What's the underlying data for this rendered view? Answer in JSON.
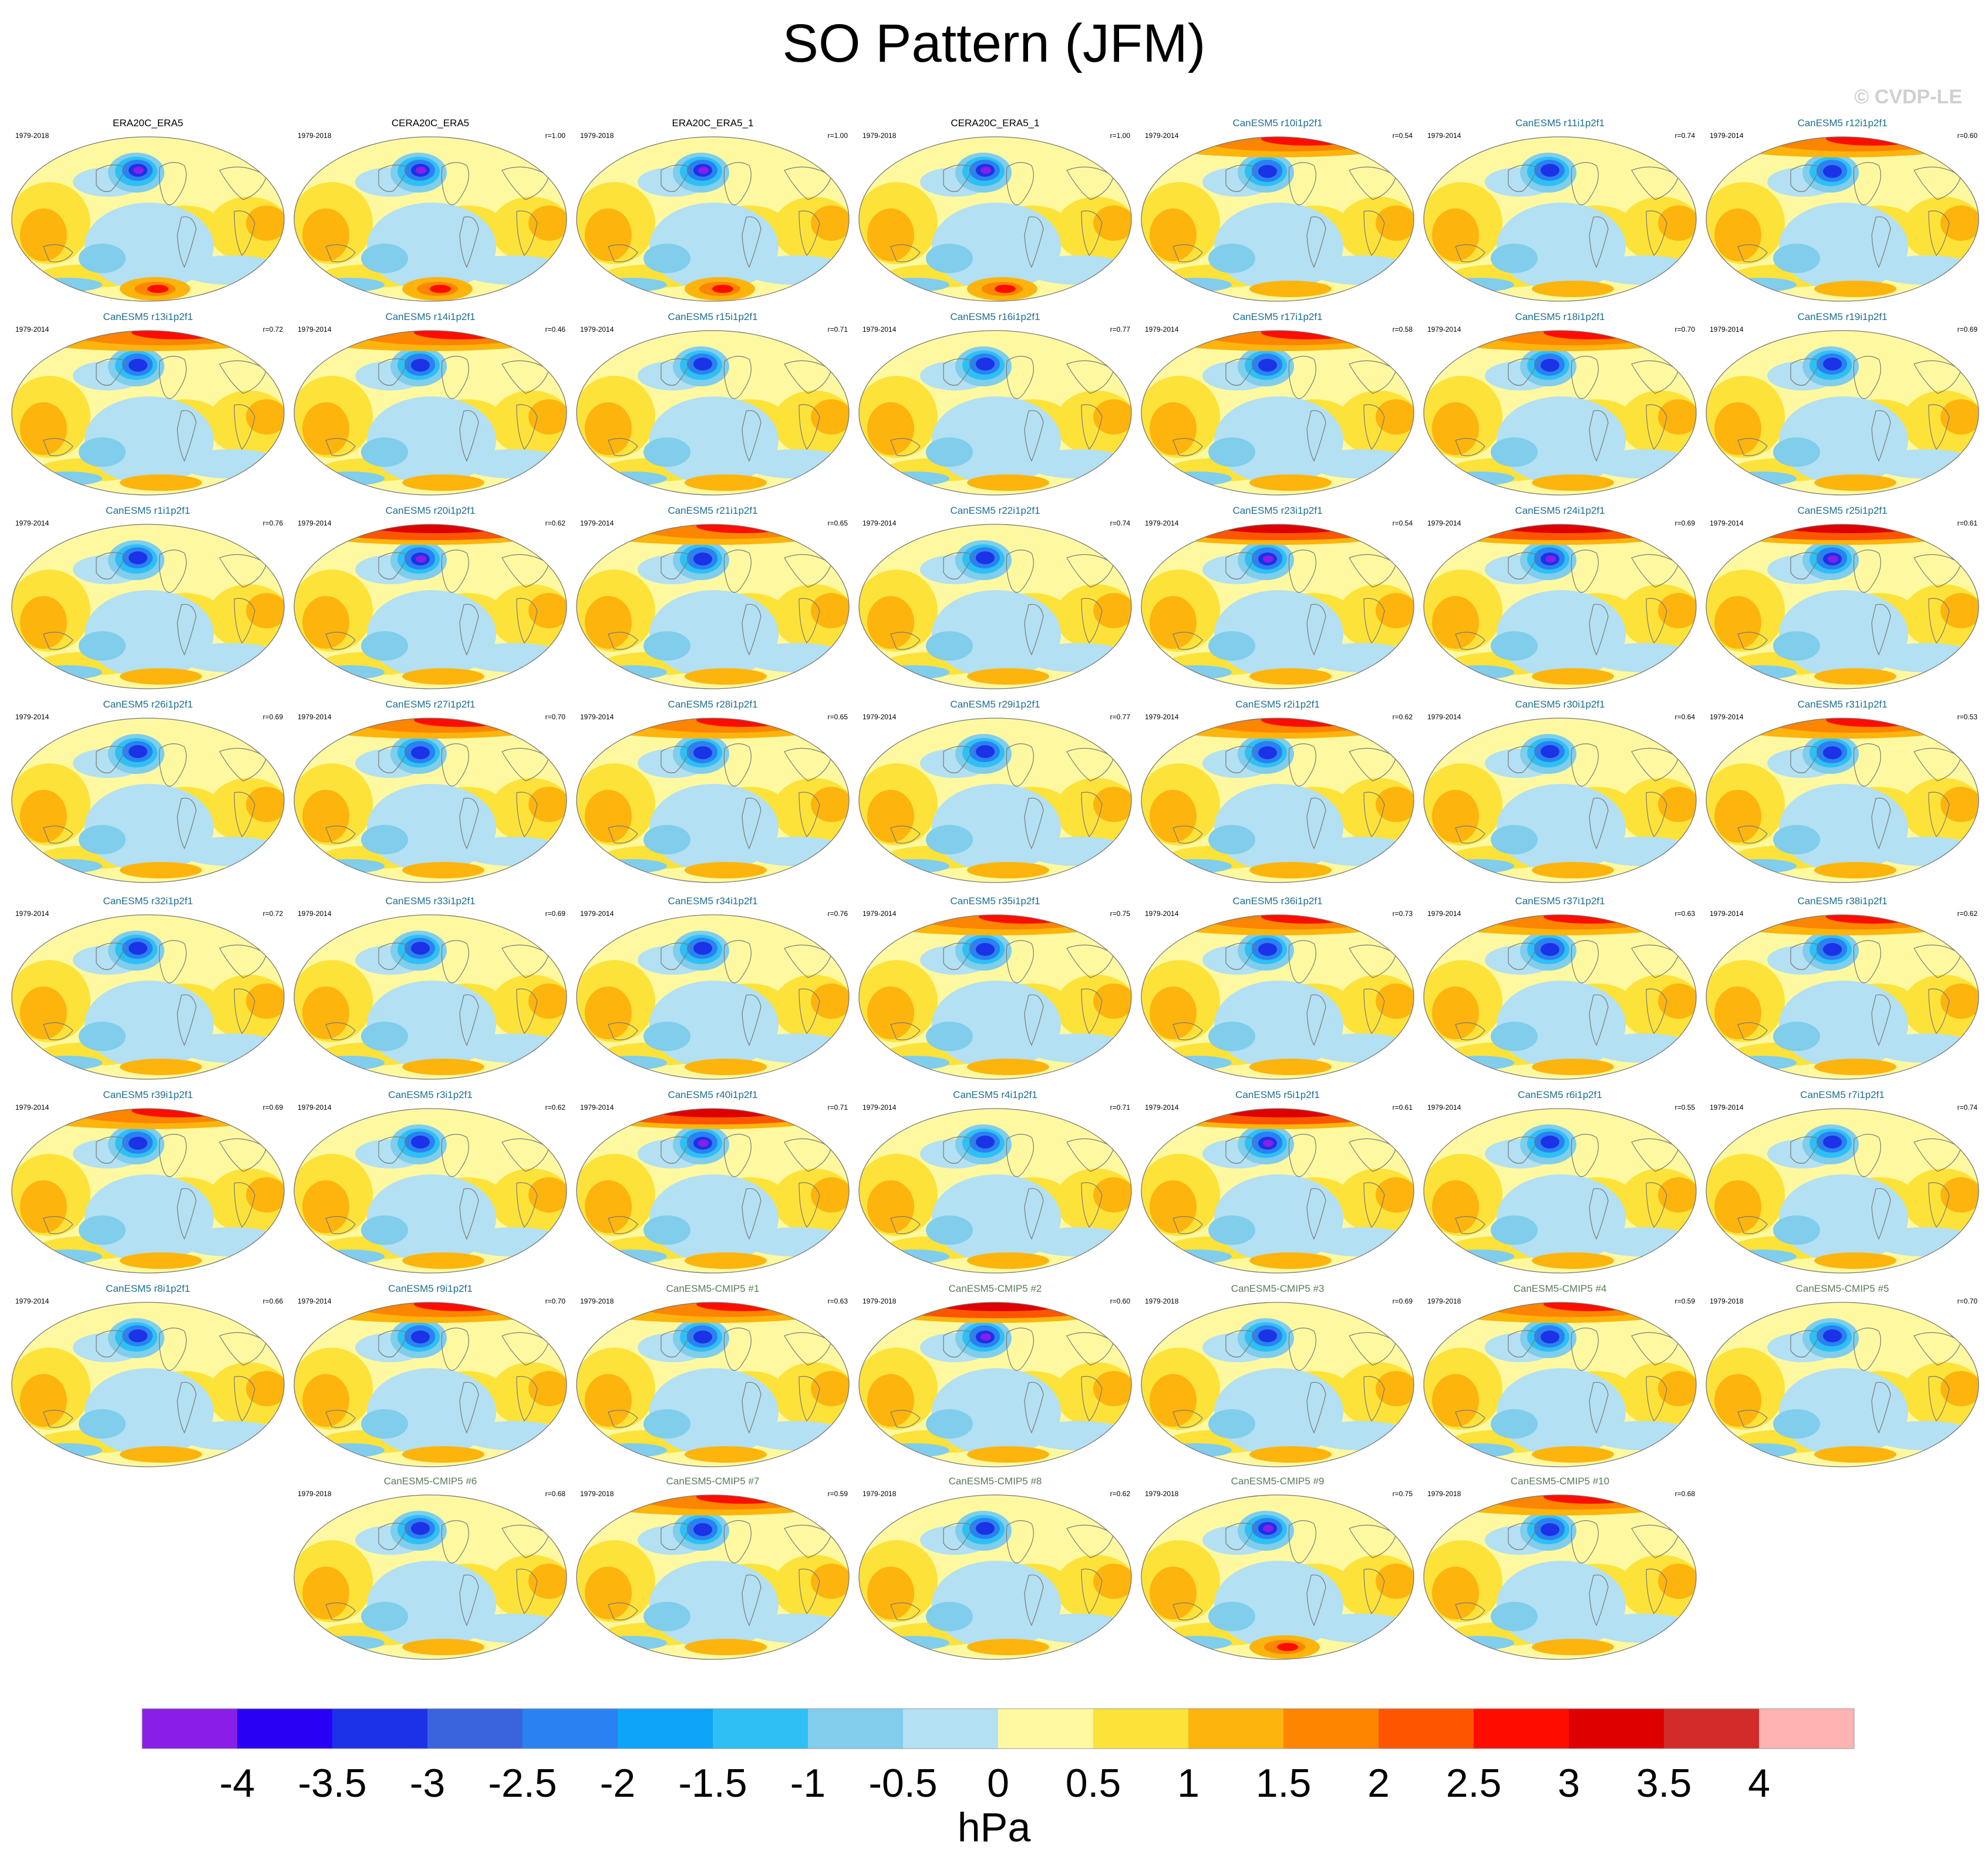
{
  "title": "SO Pattern (JFM)",
  "watermark": "© CVDP-LE",
  "panels": [
    {
      "name": "ERA20C_ERA5",
      "period": "1979-2018",
      "r": "",
      "group": "obs",
      "variant": 0
    },
    {
      "name": "CERA20C_ERA5",
      "period": "1979-2018",
      "r": "r=1.00",
      "group": "obs",
      "variant": 0
    },
    {
      "name": "ERA20C_ERA5_1",
      "period": "1979-2018",
      "r": "r=1.00",
      "group": "obs",
      "variant": 0
    },
    {
      "name": "CERA20C_ERA5_1",
      "period": "1979-2018",
      "r": "r=1.00",
      "group": "obs",
      "variant": 0
    },
    {
      "name": "CanESM5 r10i1p2f1",
      "period": "1979-2014",
      "r": "r=0.54",
      "group": "cmip6",
      "variant": 2
    },
    {
      "name": "CanESM5 r11i1p2f1",
      "period": "1979-2014",
      "r": "r=0.74",
      "group": "cmip6",
      "variant": 1
    },
    {
      "name": "CanESM5 r12i1p2f1",
      "period": "1979-2014",
      "r": "r=0.60",
      "group": "cmip6",
      "variant": 2
    },
    {
      "name": "CanESM5 r13i1p2f1",
      "period": "1979-2014",
      "r": "r=0.72",
      "group": "cmip6",
      "variant": 3
    },
    {
      "name": "CanESM5 r14i1p2f1",
      "period": "1979-2014",
      "r": "r=0.46",
      "group": "cmip6",
      "variant": 2
    },
    {
      "name": "CanESM5 r15i1p2f1",
      "period": "1979-2014",
      "r": "r=0.71",
      "group": "cmip6",
      "variant": 1
    },
    {
      "name": "CanESM5 r16i1p2f1",
      "period": "1979-2014",
      "r": "r=0.77",
      "group": "cmip6",
      "variant": 1
    },
    {
      "name": "CanESM5 r17i1p2f1",
      "period": "1979-2014",
      "r": "r=0.58",
      "group": "cmip6",
      "variant": 3
    },
    {
      "name": "CanESM5 r18i1p2f1",
      "period": "1979-2014",
      "r": "r=0.70",
      "group": "cmip6",
      "variant": 3
    },
    {
      "name": "CanESM5 r19i1p2f1",
      "period": "1979-2014",
      "r": "r=0.69",
      "group": "cmip6",
      "variant": 1
    },
    {
      "name": "CanESM5 r1i1p2f1",
      "period": "1979-2014",
      "r": "r=0.76",
      "group": "cmip6",
      "variant": 1
    },
    {
      "name": "CanESM5 r20i1p2f1",
      "period": "1979-2014",
      "r": "r=0.62",
      "group": "cmip6",
      "variant": 4
    },
    {
      "name": "CanESM5 r21i1p2f1",
      "period": "1979-2014",
      "r": "r=0.65",
      "group": "cmip6",
      "variant": 2
    },
    {
      "name": "CanESM5 r22i1p2f1",
      "period": "1979-2014",
      "r": "r=0.74",
      "group": "cmip6",
      "variant": 1
    },
    {
      "name": "CanESM5 r23i1p2f1",
      "period": "1979-2014",
      "r": "r=0.54",
      "group": "cmip6",
      "variant": 4
    },
    {
      "name": "CanESM5 r24i1p2f1",
      "period": "1979-2014",
      "r": "r=0.69",
      "group": "cmip6",
      "variant": 4
    },
    {
      "name": "CanESM5 r25i1p2f1",
      "period": "1979-2014",
      "r": "r=0.61",
      "group": "cmip6",
      "variant": 4
    },
    {
      "name": "CanESM5 r26i1p2f1",
      "period": "1979-2014",
      "r": "r=0.69",
      "group": "cmip6",
      "variant": 1
    },
    {
      "name": "CanESM5 r27i1p2f1",
      "period": "1979-2014",
      "r": "r=0.70",
      "group": "cmip6",
      "variant": 3
    },
    {
      "name": "CanESM5 r28i1p2f1",
      "period": "1979-2014",
      "r": "r=0.65",
      "group": "cmip6",
      "variant": 2
    },
    {
      "name": "CanESM5 r29i1p2f1",
      "period": "1979-2014",
      "r": "r=0.77",
      "group": "cmip6",
      "variant": 1
    },
    {
      "name": "CanESM5 r2i1p2f1",
      "period": "1979-2014",
      "r": "r=0.62",
      "group": "cmip6",
      "variant": 2
    },
    {
      "name": "CanESM5 r30i1p2f1",
      "period": "1979-2014",
      "r": "r=0.64",
      "group": "cmip6",
      "variant": 1
    },
    {
      "name": "CanESM5 r31i1p2f1",
      "period": "1979-2014",
      "r": "r=0.53",
      "group": "cmip6",
      "variant": 2
    },
    {
      "name": "CanESM5 r32i1p2f1",
      "period": "1979-2014",
      "r": "r=0.72",
      "group": "cmip6",
      "variant": 1
    },
    {
      "name": "CanESM5 r33i1p2f1",
      "period": "1979-2014",
      "r": "r=0.69",
      "group": "cmip6",
      "variant": 1
    },
    {
      "name": "CanESM5 r34i1p2f1",
      "period": "1979-2014",
      "r": "r=0.76",
      "group": "cmip6",
      "variant": 1
    },
    {
      "name": "CanESM5 r35i1p2f1",
      "period": "1979-2014",
      "r": "r=0.75",
      "group": "cmip6",
      "variant": 3
    },
    {
      "name": "CanESM5 r36i1p2f1",
      "period": "1979-2014",
      "r": "r=0.73",
      "group": "cmip6",
      "variant": 3
    },
    {
      "name": "CanESM5 r37i1p2f1",
      "period": "1979-2014",
      "r": "r=0.63",
      "group": "cmip6",
      "variant": 3
    },
    {
      "name": "CanESM5 r38i1p2f1",
      "period": "1979-2014",
      "r": "r=0.62",
      "group": "cmip6",
      "variant": 2
    },
    {
      "name": "CanESM5 r39i1p2f1",
      "period": "1979-2014",
      "r": "r=0.69",
      "group": "cmip6",
      "variant": 3
    },
    {
      "name": "CanESM5 r3i1p2f1",
      "period": "1979-2014",
      "r": "r=0.62",
      "group": "cmip6",
      "variant": 1
    },
    {
      "name": "CanESM5 r40i1p2f1",
      "period": "1979-2014",
      "r": "r=0.71",
      "group": "cmip6",
      "variant": 4
    },
    {
      "name": "CanESM5 r4i1p2f1",
      "period": "1979-2014",
      "r": "r=0.71",
      "group": "cmip6",
      "variant": 1
    },
    {
      "name": "CanESM5 r5i1p2f1",
      "period": "1979-2014",
      "r": "r=0.61",
      "group": "cmip6",
      "variant": 4
    },
    {
      "name": "CanESM5 r6i1p2f1",
      "period": "1979-2014",
      "r": "r=0.55",
      "group": "cmip6",
      "variant": 1
    },
    {
      "name": "CanESM5 r7i1p2f1",
      "period": "1979-2014",
      "r": "r=0.74",
      "group": "cmip6",
      "variant": 1
    },
    {
      "name": "CanESM5 r8i1p2f1",
      "period": "1979-2014",
      "r": "r=0.66",
      "group": "cmip6",
      "variant": 1
    },
    {
      "name": "CanESM5 r9i1p2f1",
      "period": "1979-2014",
      "r": "r=0.70",
      "group": "cmip6",
      "variant": 3
    },
    {
      "name": "CanESM5-CMIP5 #1",
      "period": "1979-2018",
      "r": "r=0.63",
      "group": "cmip5",
      "variant": 2
    },
    {
      "name": "CanESM5-CMIP5 #2",
      "period": "1979-2018",
      "r": "r=0.60",
      "group": "cmip5",
      "variant": 4
    },
    {
      "name": "CanESM5-CMIP5 #3",
      "period": "1979-2018",
      "r": "r=0.69",
      "group": "cmip5",
      "variant": 1
    },
    {
      "name": "CanESM5-CMIP5 #4",
      "period": "1979-2018",
      "r": "r=0.59",
      "group": "cmip5",
      "variant": 2
    },
    {
      "name": "CanESM5-CMIP5 #5",
      "period": "1979-2018",
      "r": "r=0.70",
      "group": "cmip5",
      "variant": 1
    },
    {
      "name": "CanESM5-CMIP5 #6",
      "period": "1979-2018",
      "r": "r=0.68",
      "group": "cmip5",
      "variant": 1
    },
    {
      "name": "CanESM5-CMIP5 #7",
      "period": "1979-2018",
      "r": "r=0.59",
      "group": "cmip5",
      "variant": 2
    },
    {
      "name": "CanESM5-CMIP5 #8",
      "period": "1979-2018",
      "r": "r=0.62",
      "group": "cmip5",
      "variant": 1
    },
    {
      "name": "CanESM5-CMIP5 #9",
      "period": "1979-2018",
      "r": "r=0.75",
      "group": "cmip5",
      "variant": 0
    },
    {
      "name": "CanESM5-CMIP5 #10",
      "period": "1979-2018",
      "r": "r=0.68",
      "group": "cmip5",
      "variant": 2
    }
  ],
  "colorbar": {
    "colors": [
      "#8a1ee8",
      "#2a00f5",
      "#1c32e6",
      "#3a64dd",
      "#2a82f2",
      "#0ea4f8",
      "#2ec0f4",
      "#80cdec",
      "#b3e0f2",
      "#fef9a0",
      "#fde23a",
      "#fdb40d",
      "#fd8500",
      "#fd5500",
      "#fd0d00",
      "#de0000",
      "#d32a2a",
      "#ffb3b3"
    ],
    "labels": [
      "-4",
      "-3.5",
      "-3",
      "-2.5",
      "-2",
      "-1.5",
      "-1",
      "-0.5",
      "0",
      "0.5",
      "1",
      "1.5",
      "2",
      "2.5",
      "3",
      "3.5",
      "4"
    ],
    "unit": "hPa"
  }
}
